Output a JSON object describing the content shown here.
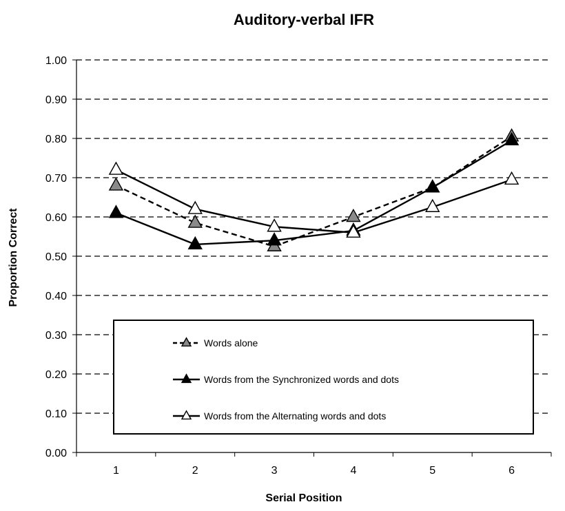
{
  "chart_data": {
    "type": "line",
    "title": "Auditory-verbal IFR",
    "xlabel": "Serial Position",
    "ylabel": "Proportion Correct",
    "x": [
      1,
      2,
      3,
      4,
      5,
      6
    ],
    "ylim": [
      0,
      1
    ],
    "yticks": [
      "0.00",
      "0.10",
      "0.20",
      "0.30",
      "0.40",
      "0.50",
      "0.60",
      "0.70",
      "0.80",
      "0.90",
      "1.00"
    ],
    "grid": true,
    "legend_position": "bottom-center",
    "series": [
      {
        "name": "Words alone",
        "values": [
          0.68,
          0.585,
          0.525,
          0.6,
          0.675,
          0.805
        ],
        "line_style": "dashed",
        "marker_fill": "#8a8a8a"
      },
      {
        "name": "Words from the Synchronized words and dots",
        "values": [
          0.61,
          0.53,
          0.54,
          0.565,
          0.675,
          0.795
        ],
        "line_style": "solid",
        "marker_fill": "#000000"
      },
      {
        "name": "Words from the Alternating words and dots",
        "values": [
          0.72,
          0.62,
          0.575,
          0.56,
          0.625,
          0.695
        ],
        "line_style": "solid",
        "marker_fill": "#ffffff"
      }
    ]
  }
}
